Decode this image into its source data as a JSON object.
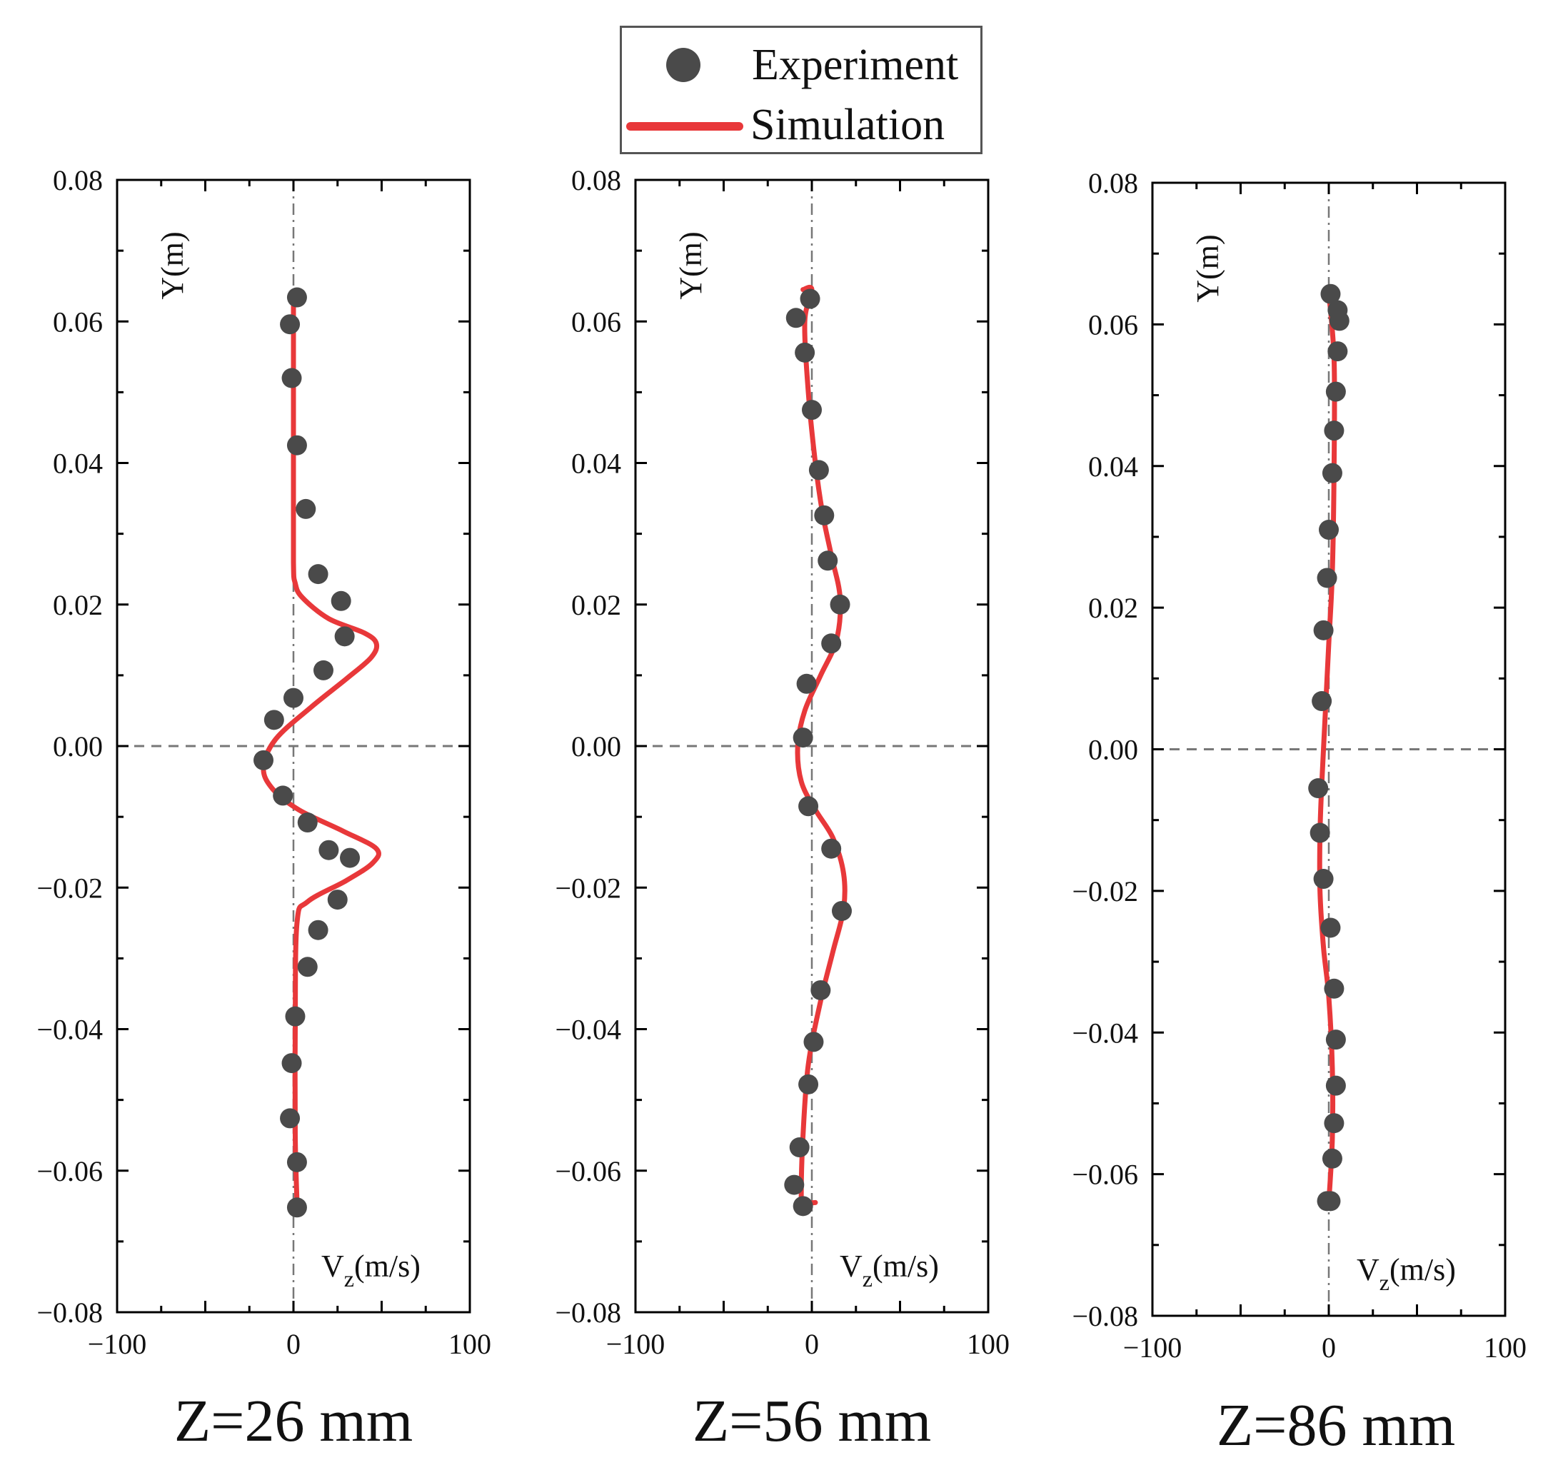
{
  "legend": {
    "experiment_label": "Experiment",
    "simulation_label": "Simulation",
    "experiment_color": "#4a4a4a",
    "simulation_color": "#e8383a"
  },
  "chart_data": [
    {
      "type": "scatter+line",
      "title": "Z=26 mm",
      "xlabel": "V_z(m/s)",
      "ylabel": "Y(m)",
      "xlim": [
        -100,
        100
      ],
      "ylim": [
        -0.08,
        0.08
      ],
      "xticks": [
        "−100",
        "0",
        "100"
      ],
      "yticks": [
        "0.08",
        "0.06",
        "0.04",
        "0.02",
        "0.00",
        "−0.02",
        "−0.04",
        "−0.06",
        "−0.08"
      ],
      "series": [
        {
          "name": "Experiment",
          "style": "markers",
          "x": [
            2,
            -2,
            -1,
            2,
            7,
            14,
            27,
            29,
            17,
            0,
            -11,
            -17,
            -6,
            8,
            20,
            32,
            25,
            14,
            8,
            1,
            -1,
            -2,
            2,
            2
          ],
          "y": [
            0.0634,
            0.0596,
            0.052,
            0.0425,
            0.0335,
            0.0243,
            0.0205,
            0.0155,
            0.0107,
            0.0068,
            0.0037,
            -0.002,
            -0.007,
            -0.0108,
            -0.0147,
            -0.0158,
            -0.0217,
            -0.026,
            -0.0312,
            -0.0382,
            -0.0448,
            -0.0526,
            -0.0588,
            -0.0652
          ]
        },
        {
          "name": "Simulation",
          "style": "line",
          "x": [
            0,
            0,
            0,
            1,
            5,
            20,
            40,
            47,
            44,
            30,
            10,
            -10,
            -17,
            -12,
            3,
            28,
            47,
            45,
            30,
            8,
            2,
            1,
            1,
            2
          ],
          "y": [
            0.064,
            0.04,
            0.026,
            0.023,
            0.021,
            0.018,
            0.016,
            0.0145,
            0.0125,
            0.0095,
            0.0055,
            0.001,
            -0.003,
            -0.006,
            -0.009,
            -0.012,
            -0.0145,
            -0.0165,
            -0.019,
            -0.022,
            -0.025,
            -0.04,
            -0.055,
            -0.0645
          ]
        }
      ]
    },
    {
      "type": "scatter+line",
      "title": "Z=56 mm",
      "xlabel": "V_z(m/s)",
      "ylabel": "Y(m)",
      "xlim": [
        -100,
        100
      ],
      "ylim": [
        -0.08,
        0.08
      ],
      "xticks": [
        "−100",
        "0",
        "100"
      ],
      "yticks": [
        "0.08",
        "0.06",
        "0.04",
        "0.02",
        "0.00",
        "−0.02",
        "−0.04",
        "−0.06",
        "−0.08"
      ],
      "series": [
        {
          "name": "Experiment",
          "style": "markers",
          "x": [
            -1,
            -9,
            -4,
            0,
            4,
            7,
            9,
            16,
            11,
            -3,
            -5,
            -2,
            11,
            17,
            5,
            1,
            -2,
            -7,
            -10,
            -5
          ],
          "y": [
            0.0632,
            0.0605,
            0.0556,
            0.0475,
            0.039,
            0.0326,
            0.0262,
            0.02,
            0.0145,
            0.0088,
            0.0012,
            -0.0085,
            -0.0145,
            -0.0233,
            -0.0345,
            -0.0418,
            -0.0478,
            -0.0567,
            -0.062,
            -0.065
          ]
        },
        {
          "name": "Simulation",
          "style": "line",
          "x": [
            -5,
            0,
            -4,
            -2,
            2,
            6,
            11,
            16,
            14,
            5,
            -4,
            -8,
            -6,
            2,
            12,
            18,
            18,
            12,
            5,
            -2,
            -5,
            -6,
            -5,
            2
          ],
          "y": [
            0.0645,
            0.0645,
            0.06,
            0.05,
            0.04,
            0.033,
            0.027,
            0.021,
            0.015,
            0.01,
            0.005,
            0.0,
            -0.005,
            -0.009,
            -0.013,
            -0.018,
            -0.023,
            -0.029,
            -0.036,
            -0.045,
            -0.055,
            -0.063,
            -0.0645,
            -0.0645
          ]
        }
      ]
    },
    {
      "type": "scatter+line",
      "title": "Z=86 mm",
      "xlabel": "V_z(m/s)",
      "ylabel": "Y(m)",
      "xlim": [
        -100,
        100
      ],
      "ylim": [
        -0.08,
        0.08
      ],
      "xticks": [
        "−100",
        "0",
        "100"
      ],
      "yticks": [
        "0.08",
        "0.06",
        "0.04",
        "0.02",
        "0.00",
        "−0.02",
        "−0.04",
        "−0.06",
        "−0.08"
      ],
      "series": [
        {
          "name": "Experiment",
          "style": "markers",
          "x": [
            1,
            5,
            6,
            5,
            4,
            3,
            2,
            0,
            -1,
            -3,
            -4,
            -6,
            -5,
            -3,
            1,
            3,
            4,
            4,
            3,
            2,
            -1,
            1
          ],
          "y": [
            0.0643,
            0.062,
            0.0605,
            0.0562,
            0.0505,
            0.045,
            0.039,
            0.031,
            0.0242,
            0.0168,
            0.0068,
            -0.0055,
            -0.0118,
            -0.0183,
            -0.0252,
            -0.0338,
            -0.041,
            -0.0475,
            -0.0528,
            -0.0578,
            -0.0638,
            -0.0638
          ]
        },
        {
          "name": "Simulation",
          "style": "line",
          "x": [
            0,
            3,
            3,
            2,
            0,
            -2,
            -4,
            -5,
            -5,
            -3,
            0,
            2,
            2,
            0
          ],
          "y": [
            0.0645,
            0.055,
            0.04,
            0.025,
            0.015,
            0.005,
            -0.005,
            -0.012,
            -0.02,
            -0.028,
            -0.035,
            -0.045,
            -0.055,
            -0.064
          ]
        }
      ]
    }
  ]
}
